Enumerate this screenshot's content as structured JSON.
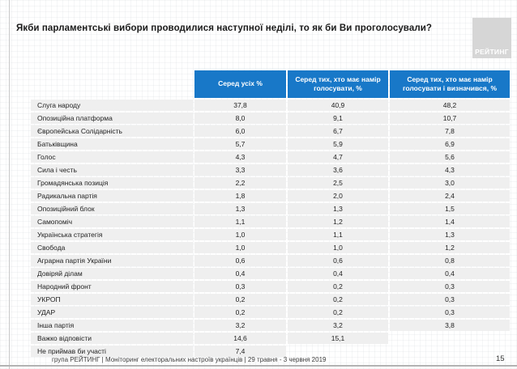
{
  "slide": {
    "title": "Якби парламентські вибори проводилися наступної неділі, то як би Ви проголосували?",
    "logo_text": "РЕЙТИНГ",
    "footer": "група РЕЙТИНГ | Моніторинг електоральних настроїв українців  | 29 травня - 3 червня 2019",
    "page_number": "15"
  },
  "colors": {
    "header_blue": "#1878c8",
    "row_gray": "#efefef",
    "logo_gray": "#d6d6d6"
  },
  "chart_data": {
    "type": "table",
    "title": "Якби парламентські вибори проводилися наступної неділі, то як би Ви проголосували?",
    "columns": [
      "Серед усіх %",
      "Серед тих, хто має намір голосувати, %",
      "Серед тих, хто має намір голосувати і визначився, %"
    ],
    "rows": [
      {
        "party": "Слуга народу",
        "values": [
          "37,8",
          "40,9",
          "48,2"
        ]
      },
      {
        "party": "Опозиційна платформа",
        "values": [
          "8,0",
          "9,1",
          "10,7"
        ]
      },
      {
        "party": "Європейська Солідарність",
        "values": [
          "6,0",
          "6,7",
          "7,8"
        ]
      },
      {
        "party": "Батьківщина",
        "values": [
          "5,7",
          "5,9",
          "6,9"
        ]
      },
      {
        "party": "Голос",
        "values": [
          "4,3",
          "4,7",
          "5,6"
        ]
      },
      {
        "party": "Сила і честь",
        "values": [
          "3,3",
          "3,6",
          "4,3"
        ]
      },
      {
        "party": "Громадянська позиція",
        "values": [
          "2,2",
          "2,5",
          "3,0"
        ]
      },
      {
        "party": "Радикальна партія",
        "values": [
          "1,8",
          "2,0",
          "2,4"
        ]
      },
      {
        "party": "Опозиційний блок",
        "values": [
          "1,3",
          "1,3",
          "1,5"
        ]
      },
      {
        "party": "Самопоміч",
        "values": [
          "1,1",
          "1,2",
          "1,4"
        ]
      },
      {
        "party": "Українська стратегія",
        "values": [
          "1,0",
          "1,1",
          "1,3"
        ]
      },
      {
        "party": "Свобода",
        "values": [
          "1,0",
          "1,0",
          "1,2"
        ]
      },
      {
        "party": "Аграрна партія України",
        "values": [
          "0,6",
          "0,6",
          "0,8"
        ]
      },
      {
        "party": "Довіряй ділам",
        "values": [
          "0,4",
          "0,4",
          "0,4"
        ]
      },
      {
        "party": "Народний фронт",
        "values": [
          "0,3",
          "0,2",
          "0,3"
        ]
      },
      {
        "party": "УКРОП",
        "values": [
          "0,2",
          "0,2",
          "0,3"
        ]
      },
      {
        "party": "УДАР",
        "values": [
          "0,2",
          "0,2",
          "0,3"
        ]
      },
      {
        "party": "Інша партія",
        "values": [
          "3,2",
          "3,2",
          "3,8"
        ]
      },
      {
        "party": "Важко відповісти",
        "values": [
          "14,6",
          "15,1",
          ""
        ]
      },
      {
        "party": "Не приймав би участі",
        "values": [
          "7,4",
          "",
          ""
        ]
      }
    ]
  }
}
